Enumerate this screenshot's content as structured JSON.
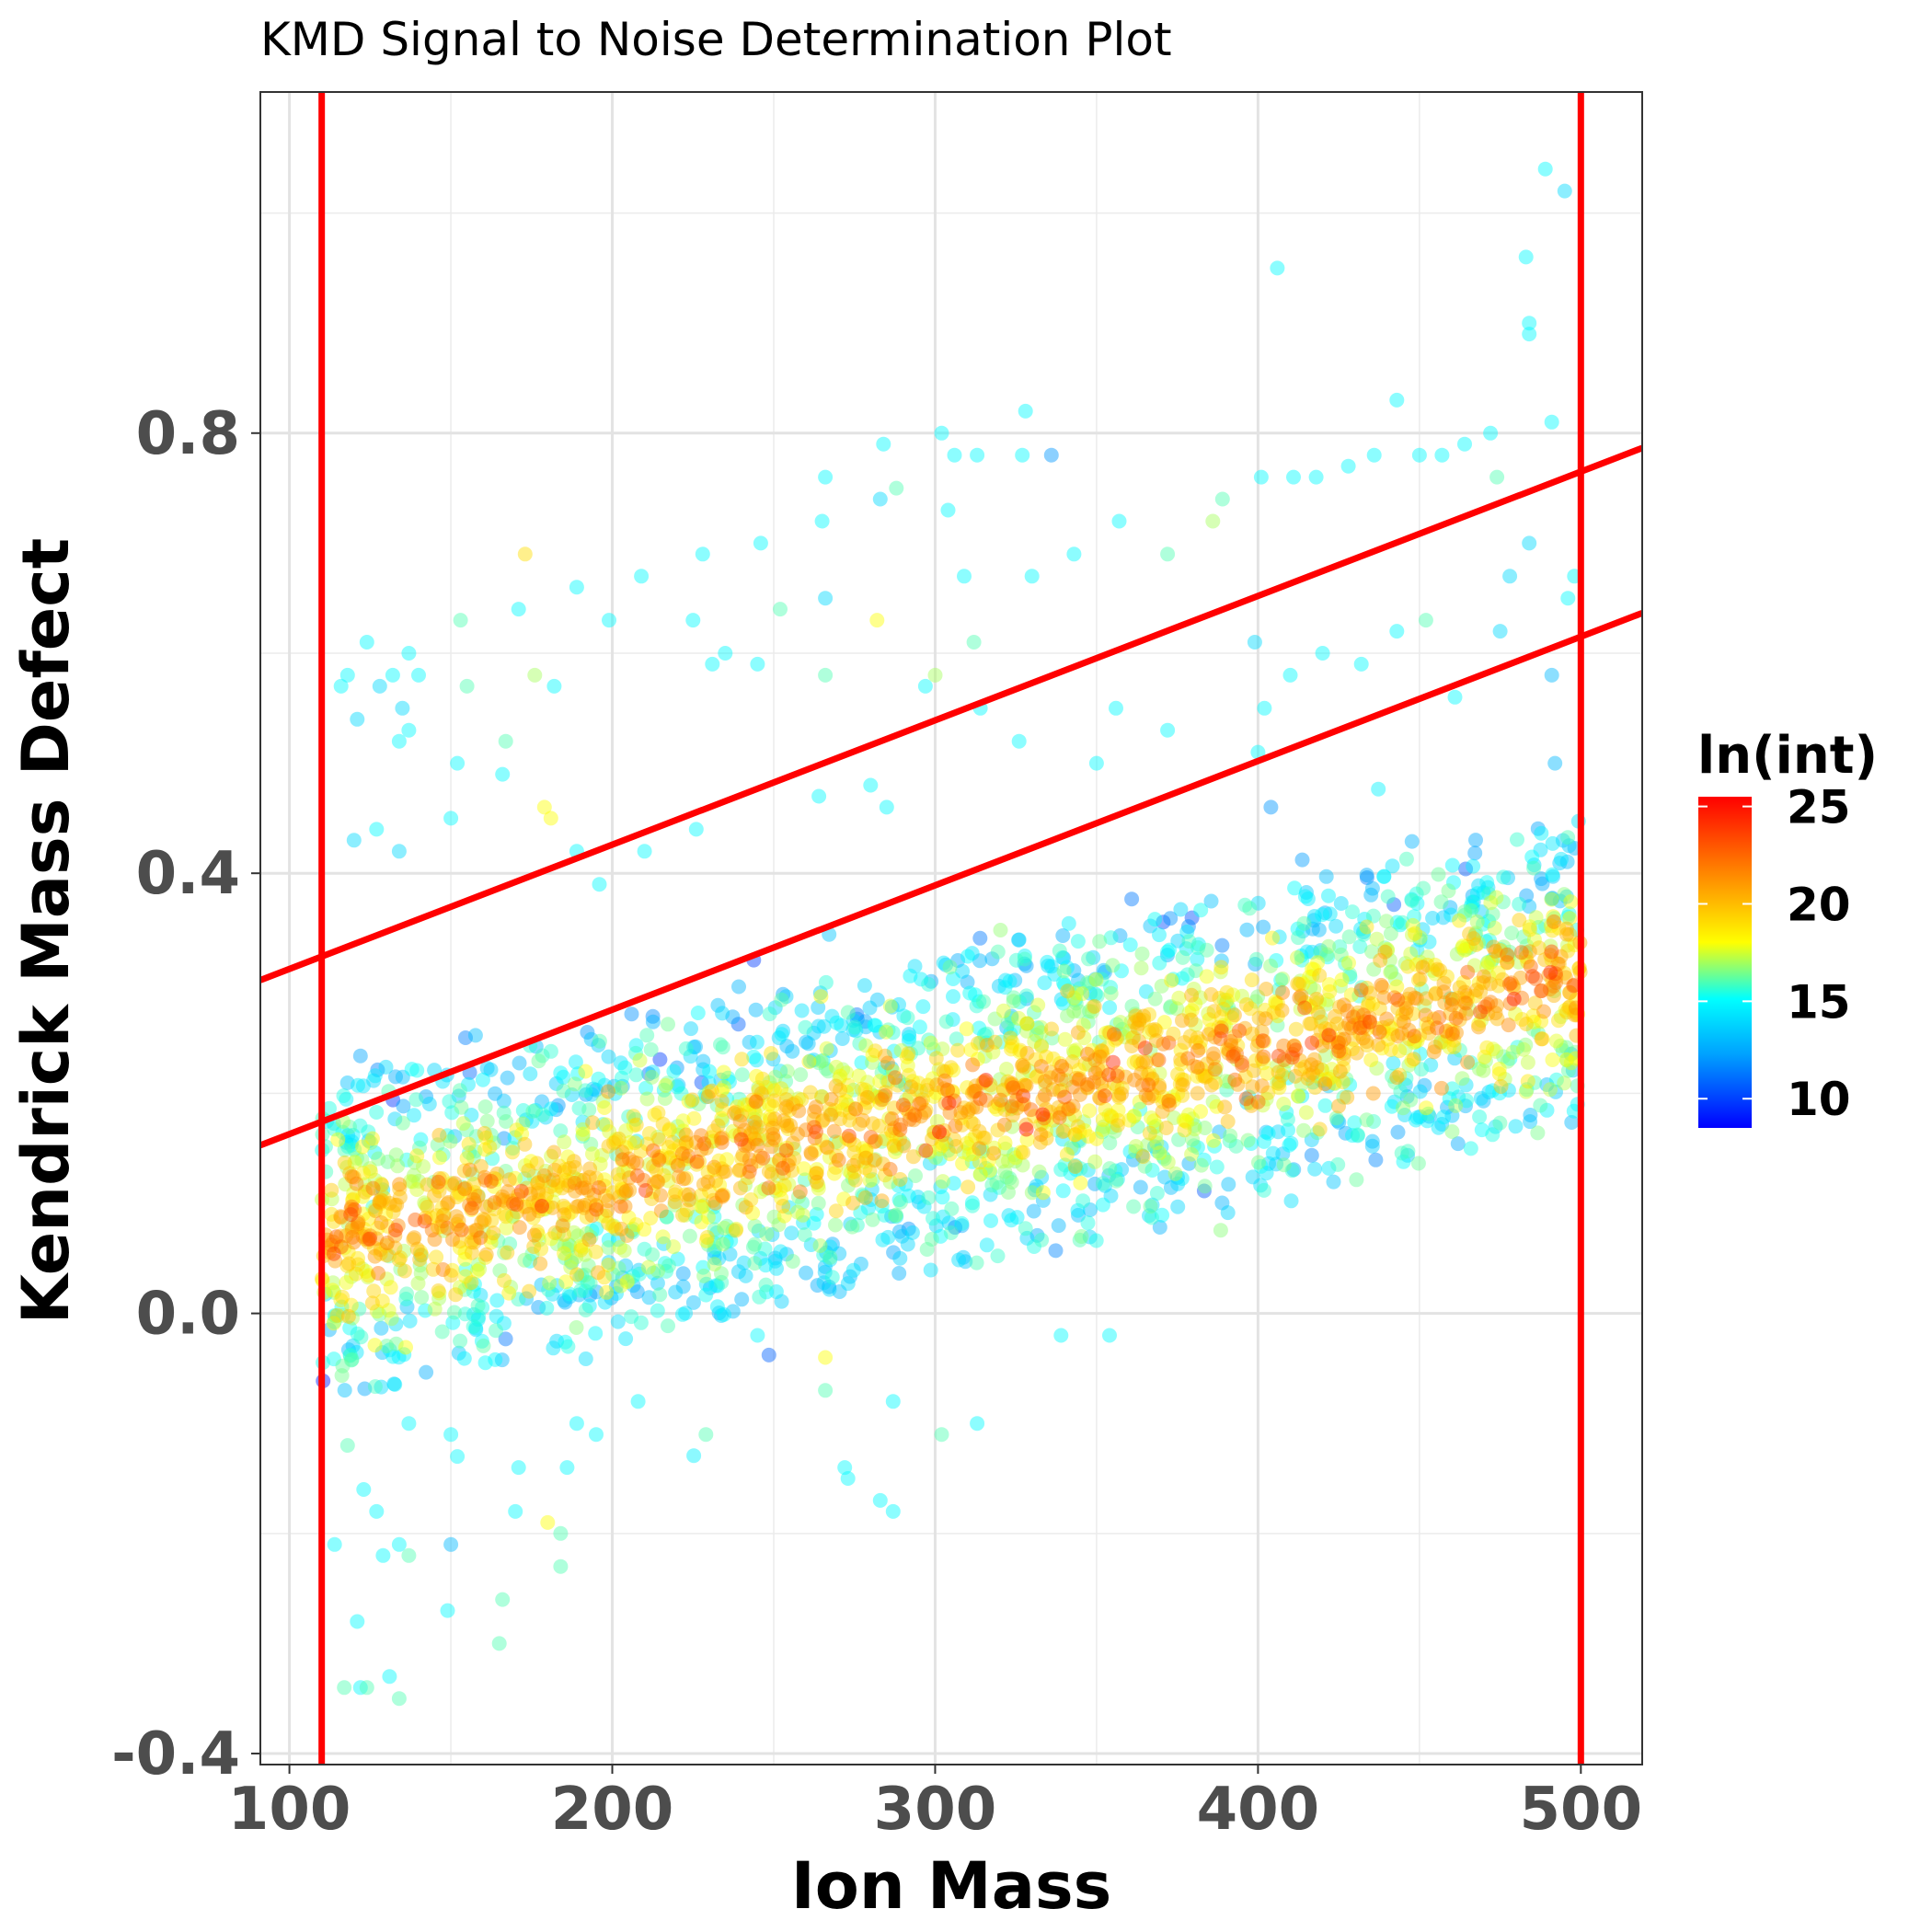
{
  "chart_data": {
    "type": "scatter",
    "title": "KMD Signal to Noise Determination Plot",
    "xlabel": "Ion Mass",
    "ylabel": "Kendrick Mass Defect",
    "xlim": [
      91,
      519
    ],
    "ylim": [
      -0.41,
      1.11
    ],
    "x_ticks": [
      100,
      200,
      300,
      400,
      500
    ],
    "x_tick_labels": [
      "100",
      "200",
      "300",
      "400",
      "500"
    ],
    "y_ticks": [
      -0.4,
      0.0,
      0.4,
      0.8
    ],
    "y_tick_labels": [
      "-0.4",
      "0.0",
      "0.4",
      "0.8"
    ],
    "grid": true,
    "point_alpha": 0.45,
    "color_scale": {
      "title": "ln(int)",
      "min": 8.5,
      "max": 25.5,
      "ticks": [
        10,
        15,
        20,
        25
      ],
      "tick_labels": [
        "10",
        "15",
        "20",
        "25"
      ],
      "colors": [
        "#0000ff",
        "#00a0ff",
        "#00ffff",
        "#ffff00",
        "#ff8000",
        "#ff0000"
      ],
      "legend_placement": "right"
    },
    "reference_lines": [
      {
        "kind": "vertical",
        "x": 110,
        "color": "#ff0000"
      },
      {
        "kind": "vertical",
        "x": 500,
        "color": "#ff0000"
      },
      {
        "kind": "diagonal",
        "intercept": 0.2,
        "slope": 0.00113,
        "color": "#ff0000"
      },
      {
        "kind": "diagonal",
        "intercept": 0.05,
        "slope": 0.00113,
        "color": "#ff0000"
      }
    ],
    "point_generation": {
      "description": "dense band: kmd ~ 0.0006*mass around 0.06..0.28; scattered outliers above and below",
      "main_band": {
        "count": 2600,
        "x_range": [
          110,
          500
        ],
        "slope": 0.00062,
        "intercept": -0.005,
        "sd": 0.055
      },
      "outliers": [
        {
          "x": 116,
          "y": 0.57,
          "z": 15
        },
        {
          "x": 118,
          "y": 0.58,
          "z": 15
        },
        {
          "x": 121,
          "y": 0.54,
          "z": 14
        },
        {
          "x": 124,
          "y": 0.61,
          "z": 15
        },
        {
          "x": 128,
          "y": 0.57,
          "z": 14
        },
        {
          "x": 132,
          "y": 0.58,
          "z": 15
        },
        {
          "x": 135,
          "y": 0.55,
          "z": 14
        },
        {
          "x": 137,
          "y": 0.6,
          "z": 15
        },
        {
          "x": 140,
          "y": 0.58,
          "z": 15
        },
        {
          "x": 120,
          "y": 0.43,
          "z": 14
        },
        {
          "x": 127,
          "y": 0.44,
          "z": 15
        },
        {
          "x": 134,
          "y": 0.42,
          "z": 14
        },
        {
          "x": 134,
          "y": 0.52,
          "z": 15
        },
        {
          "x": 137,
          "y": 0.53,
          "z": 15
        },
        {
          "x": 150,
          "y": 0.45,
          "z": 15
        },
        {
          "x": 152,
          "y": 0.5,
          "z": 15
        },
        {
          "x": 153,
          "y": 0.63,
          "z": 16
        },
        {
          "x": 155,
          "y": 0.57,
          "z": 16
        },
        {
          "x": 166,
          "y": 0.49,
          "z": 15
        },
        {
          "x": 167,
          "y": 0.52,
          "z": 16
        },
        {
          "x": 171,
          "y": 0.64,
          "z": 15
        },
        {
          "x": 173,
          "y": 0.69,
          "z": 19
        },
        {
          "x": 176,
          "y": 0.58,
          "z": 17
        },
        {
          "x": 182,
          "y": 0.57,
          "z": 15
        },
        {
          "x": 179,
          "y": 0.46,
          "z": 18
        },
        {
          "x": 181,
          "y": 0.45,
          "z": 18
        },
        {
          "x": 189,
          "y": 0.42,
          "z": 15
        },
        {
          "x": 189,
          "y": 0.66,
          "z": 15
        },
        {
          "x": 199,
          "y": 0.63,
          "z": 15
        },
        {
          "x": 209,
          "y": 0.67,
          "z": 15
        },
        {
          "x": 225,
          "y": 0.63,
          "z": 15
        },
        {
          "x": 228,
          "y": 0.69,
          "z": 15
        },
        {
          "x": 231,
          "y": 0.59,
          "z": 15
        },
        {
          "x": 235,
          "y": 0.6,
          "z": 15
        },
        {
          "x": 245,
          "y": 0.59,
          "z": 15
        },
        {
          "x": 246,
          "y": 0.7,
          "z": 15
        },
        {
          "x": 252,
          "y": 0.64,
          "z": 16
        },
        {
          "x": 266,
          "y": 0.76,
          "z": 15
        },
        {
          "x": 265,
          "y": 0.72,
          "z": 15
        },
        {
          "x": 266,
          "y": 0.65,
          "z": 14
        },
        {
          "x": 266,
          "y": 0.58,
          "z": 16
        },
        {
          "x": 282,
          "y": 0.63,
          "z": 18
        },
        {
          "x": 284,
          "y": 0.79,
          "z": 15
        },
        {
          "x": 283,
          "y": 0.74,
          "z": 14
        },
        {
          "x": 288,
          "y": 0.75,
          "z": 16
        },
        {
          "x": 302,
          "y": 0.8,
          "z": 15
        },
        {
          "x": 306,
          "y": 0.78,
          "z": 15
        },
        {
          "x": 313,
          "y": 0.78,
          "z": 15
        },
        {
          "x": 304,
          "y": 0.73,
          "z": 15
        },
        {
          "x": 309,
          "y": 0.67,
          "z": 15
        },
        {
          "x": 312,
          "y": 0.61,
          "z": 16
        },
        {
          "x": 327,
          "y": 0.78,
          "z": 15
        },
        {
          "x": 328,
          "y": 0.82,
          "z": 15
        },
        {
          "x": 336,
          "y": 0.78,
          "z": 12
        },
        {
          "x": 330,
          "y": 0.67,
          "z": 15
        },
        {
          "x": 343,
          "y": 0.69,
          "z": 15
        },
        {
          "x": 357,
          "y": 0.72,
          "z": 15
        },
        {
          "x": 372,
          "y": 0.69,
          "z": 16
        },
        {
          "x": 386,
          "y": 0.72,
          "z": 17
        },
        {
          "x": 389,
          "y": 0.74,
          "z": 16
        },
        {
          "x": 401,
          "y": 0.76,
          "z": 15
        },
        {
          "x": 406,
          "y": 0.95,
          "z": 15
        },
        {
          "x": 411,
          "y": 0.76,
          "z": 15
        },
        {
          "x": 418,
          "y": 0.76,
          "z": 15
        },
        {
          "x": 428,
          "y": 0.77,
          "z": 15
        },
        {
          "x": 436,
          "y": 0.78,
          "z": 15
        },
        {
          "x": 443,
          "y": 0.83,
          "z": 15
        },
        {
          "x": 450,
          "y": 0.78,
          "z": 15
        },
        {
          "x": 457,
          "y": 0.78,
          "z": 15
        },
        {
          "x": 464,
          "y": 0.79,
          "z": 15
        },
        {
          "x": 472,
          "y": 0.8,
          "z": 15
        },
        {
          "x": 474,
          "y": 0.76,
          "z": 16
        },
        {
          "x": 483,
          "y": 0.96,
          "z": 15
        },
        {
          "x": 484,
          "y": 0.9,
          "z": 15
        },
        {
          "x": 484,
          "y": 0.89,
          "z": 15
        },
        {
          "x": 489,
          "y": 1.04,
          "z": 15
        },
        {
          "x": 495,
          "y": 1.02,
          "z": 14
        },
        {
          "x": 491,
          "y": 0.81,
          "z": 15
        },
        {
          "x": 399,
          "y": 0.61,
          "z": 14
        },
        {
          "x": 400,
          "y": 0.51,
          "z": 15
        },
        {
          "x": 404,
          "y": 0.46,
          "z": 12
        },
        {
          "x": 402,
          "y": 0.55,
          "z": 15
        },
        {
          "x": 410,
          "y": 0.58,
          "z": 15
        },
        {
          "x": 420,
          "y": 0.6,
          "z": 15
        },
        {
          "x": 432,
          "y": 0.59,
          "z": 15
        },
        {
          "x": 443,
          "y": 0.62,
          "z": 15
        },
        {
          "x": 452,
          "y": 0.63,
          "z": 16
        },
        {
          "x": 461,
          "y": 0.56,
          "z": 15
        },
        {
          "x": 475,
          "y": 0.62,
          "z": 14
        },
        {
          "x": 478,
          "y": 0.67,
          "z": 14
        },
        {
          "x": 484,
          "y": 0.7,
          "z": 14
        },
        {
          "x": 491,
          "y": 0.58,
          "z": 13
        },
        {
          "x": 492,
          "y": 0.5,
          "z": 13
        },
        {
          "x": 496,
          "y": 0.65,
          "z": 15
        },
        {
          "x": 498,
          "y": 0.67,
          "z": 15
        },
        {
          "x": 372,
          "y": 0.53,
          "z": 15
        },
        {
          "x": 356,
          "y": 0.55,
          "z": 15
        },
        {
          "x": 350,
          "y": 0.5,
          "z": 15
        },
        {
          "x": 326,
          "y": 0.52,
          "z": 15
        },
        {
          "x": 314,
          "y": 0.55,
          "z": 15
        },
        {
          "x": 297,
          "y": 0.57,
          "z": 15
        },
        {
          "x": 300,
          "y": 0.58,
          "z": 17
        },
        {
          "x": 285,
          "y": 0.46,
          "z": 15
        },
        {
          "x": 280,
          "y": 0.48,
          "z": 15
        },
        {
          "x": 264,
          "y": 0.47,
          "z": 15
        },
        {
          "x": 226,
          "y": 0.44,
          "z": 15
        },
        {
          "x": 210,
          "y": 0.42,
          "z": 15
        },
        {
          "x": 196,
          "y": 0.39,
          "z": 15
        },
        {
          "x": 114,
          "y": -0.21,
          "z": 15
        },
        {
          "x": 117,
          "y": -0.34,
          "z": 16
        },
        {
          "x": 121,
          "y": -0.28,
          "z": 15
        },
        {
          "x": 122,
          "y": -0.34,
          "z": 15
        },
        {
          "x": 124,
          "y": -0.34,
          "z": 16
        },
        {
          "x": 131,
          "y": -0.33,
          "z": 15
        },
        {
          "x": 134,
          "y": -0.35,
          "z": 16
        },
        {
          "x": 118,
          "y": -0.12,
          "z": 16
        },
        {
          "x": 123,
          "y": -0.16,
          "z": 15
        },
        {
          "x": 127,
          "y": -0.18,
          "z": 15
        },
        {
          "x": 129,
          "y": -0.22,
          "z": 15
        },
        {
          "x": 134,
          "y": -0.21,
          "z": 15
        },
        {
          "x": 137,
          "y": -0.22,
          "z": 16
        },
        {
          "x": 137,
          "y": -0.1,
          "z": 15
        },
        {
          "x": 150,
          "y": -0.11,
          "z": 15
        },
        {
          "x": 150,
          "y": -0.21,
          "z": 13
        },
        {
          "x": 152,
          "y": -0.13,
          "z": 15
        },
        {
          "x": 149,
          "y": -0.27,
          "z": 15
        },
        {
          "x": 166,
          "y": -0.26,
          "z": 16
        },
        {
          "x": 165,
          "y": -0.3,
          "z": 16
        },
        {
          "x": 170,
          "y": -0.18,
          "z": 15
        },
        {
          "x": 171,
          "y": -0.14,
          "z": 15
        },
        {
          "x": 180,
          "y": -0.19,
          "z": 18
        },
        {
          "x": 184,
          "y": -0.2,
          "z": 16
        },
        {
          "x": 184,
          "y": -0.23,
          "z": 16
        },
        {
          "x": 186,
          "y": -0.14,
          "z": 15
        },
        {
          "x": 189,
          "y": -0.1,
          "z": 15
        },
        {
          "x": 195,
          "y": -0.11,
          "z": 15
        },
        {
          "x": 208,
          "y": -0.08,
          "z": 15
        },
        {
          "x": 229,
          "y": -0.11,
          "z": 16
        },
        {
          "x": 245,
          "y": -0.02,
          "z": 15
        },
        {
          "x": 266,
          "y": -0.07,
          "z": 16
        },
        {
          "x": 266,
          "y": -0.04,
          "z": 18
        },
        {
          "x": 272,
          "y": -0.14,
          "z": 15
        },
        {
          "x": 273,
          "y": -0.15,
          "z": 15
        },
        {
          "x": 283,
          "y": -0.17,
          "z": 15
        },
        {
          "x": 287,
          "y": -0.18,
          "z": 15
        },
        {
          "x": 287,
          "y": -0.08,
          "z": 15
        },
        {
          "x": 302,
          "y": -0.11,
          "z": 16
        },
        {
          "x": 313,
          "y": -0.1,
          "z": 15
        },
        {
          "x": 339,
          "y": -0.02,
          "z": 15
        },
        {
          "x": 354,
          "y": -0.02,
          "z": 15
        }
      ]
    }
  }
}
